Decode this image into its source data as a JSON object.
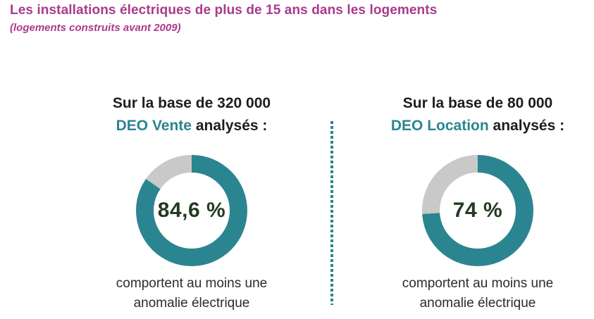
{
  "title": "Les installations électriques de plus de 15 ans dans les logements",
  "subtitle": "(logements construits avant 2009)",
  "colors": {
    "magenta": "#aa3a8d",
    "teal": "#2b8591",
    "gray": "#c9c9c9",
    "percentage_text": "#233a23",
    "header_text": "#1d1d1b",
    "caption_text": "#2b2b2b"
  },
  "panels": [
    {
      "base_prefix": "Sur la base de 320 000",
      "doc_type": "DEO Vente",
      "suffix": " analysés :",
      "pct": 84.6,
      "pct_label": "84,6 %",
      "caption_line1": "comportent au moins une",
      "caption_line2": "anomalie électrique"
    },
    {
      "base_prefix": "Sur la base de 80 000",
      "doc_type": "DEO Location",
      "suffix": " analysés :",
      "pct": 74,
      "pct_label": "74 %",
      "caption_line1": "comportent au moins une",
      "caption_line2": "anomalie électrique"
    }
  ],
  "chart_data": [
    {
      "type": "pie",
      "subtype": "donut",
      "title": "Sur la base de 320 000 DEO Vente analysés :",
      "labels": [
        "comportent au moins une anomalie électrique",
        "reste"
      ],
      "values": [
        84.6,
        15.4
      ],
      "center_label": "84,6 %",
      "colors": [
        "#2b8591",
        "#c9c9c9"
      ],
      "start_angle_deg": 0,
      "direction": "clockwise",
      "legend": "none"
    },
    {
      "type": "pie",
      "subtype": "donut",
      "title": "Sur la base de 80 000 DEO Location analysés :",
      "labels": [
        "comportent au moins une anomalie électrique",
        "reste"
      ],
      "values": [
        74,
        26
      ],
      "center_label": "74 %",
      "colors": [
        "#2b8591",
        "#c9c9c9"
      ],
      "start_angle_deg": 0,
      "direction": "clockwise",
      "legend": "none"
    }
  ]
}
